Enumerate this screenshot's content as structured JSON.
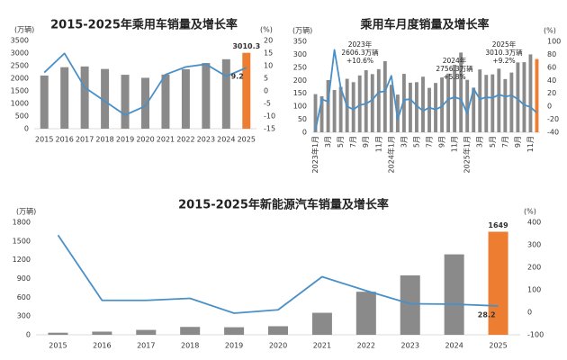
{
  "chart_data": [
    {
      "type": "bar",
      "title": "2015-2025年乘用车销量及增长率",
      "y_label": "(万辆)",
      "y2_label": "(%)",
      "categories": [
        "2015",
        "2016",
        "2017",
        "2018",
        "2019",
        "2020",
        "2021",
        "2022",
        "2023",
        "2024",
        "2025"
      ],
      "series": [
        {
          "name": "销量",
          "type": "bar",
          "color": "#8a8a8a",
          "colors": [
            "#8a8a8a",
            "#8a8a8a",
            "#8a8a8a",
            "#8a8a8a",
            "#8a8a8a",
            "#8a8a8a",
            "#8a8a8a",
            "#8a8a8a",
            "#8a8a8a",
            "#8a8a8a",
            "#ed7d31"
          ],
          "values": [
            2110,
            2440,
            2470,
            2370,
            2140,
            2020,
            2150,
            2360,
            2606.3,
            2756.3,
            3010.3
          ],
          "value_labels": [
            null,
            null,
            null,
            null,
            null,
            null,
            null,
            null,
            null,
            null,
            "3010.3"
          ]
        },
        {
          "name": "增长率",
          "type": "line",
          "axis": "y2",
          "color": "#4a90c8",
          "values": [
            7.3,
            14.9,
            1.4,
            -4.1,
            -9.6,
            -6.0,
            6.5,
            9.5,
            10.6,
            5.8,
            9.2
          ],
          "value_labels": [
            null,
            null,
            null,
            null,
            null,
            null,
            null,
            null,
            null,
            null,
            "9.2"
          ]
        }
      ],
      "ylim": [
        0,
        3500
      ],
      "yticks": [
        0,
        500,
        1000,
        1500,
        2000,
        2500,
        3000,
        3500
      ],
      "y2lim": [
        -15,
        20
      ],
      "y2ticks": [
        -15,
        -10,
        -5,
        0,
        5,
        10,
        15,
        20
      ]
    },
    {
      "type": "bar",
      "title": "乘用车月度销量及增长率",
      "y_label": "(万辆)",
      "y2_label": "(%)",
      "rotate_x_labels": true,
      "categories": [
        "2023年1月",
        null,
        "3月",
        null,
        "5月",
        null,
        "7月",
        null,
        "9月",
        null,
        "11月",
        null,
        "2024年1月",
        null,
        "3月",
        null,
        "5月",
        null,
        "7月",
        null,
        "9月",
        null,
        "11月",
        null,
        "2025年1月",
        null,
        "3月",
        null,
        "5月",
        null,
        "7月",
        null,
        "9月",
        null,
        "11月",
        null
      ],
      "annotations": [
        [
          "2023年",
          "2606.3万辆",
          "+10.6%"
        ],
        [
          "2024年",
          "2756.3万辆",
          "+5.8%"
        ],
        [
          "2025年",
          "3010.3万辆",
          "+9.2%"
        ]
      ],
      "series": [
        {
          "name": "销量",
          "type": "bar",
          "color": "#8a8a8a",
          "colors": [
            "#8a8a8a",
            "#8a8a8a",
            "#8a8a8a",
            "#8a8a8a",
            "#8a8a8a",
            "#8a8a8a",
            "#8a8a8a",
            "#8a8a8a",
            "#8a8a8a",
            "#8a8a8a",
            "#8a8a8a",
            "#8a8a8a",
            "#8a8a8a",
            "#8a8a8a",
            "#8a8a8a",
            "#8a8a8a",
            "#8a8a8a",
            "#8a8a8a",
            "#8a8a8a",
            "#8a8a8a",
            "#8a8a8a",
            "#8a8a8a",
            "#8a8a8a",
            "#8a8a8a",
            "#8a8a8a",
            "#8a8a8a",
            "#8a8a8a",
            "#8a8a8a",
            "#8a8a8a",
            "#8a8a8a",
            "#8a8a8a",
            "#8a8a8a",
            "#8a8a8a",
            "#8a8a8a",
            "#8a8a8a",
            "#ed7d31"
          ],
          "values": [
            147,
            139,
            201,
            163,
            175,
            206,
            193,
            219,
            239,
            224,
            243,
            274,
            183,
            145,
            225,
            191,
            193,
            214,
            171,
            190,
            211,
            226,
            260,
            307,
            202,
            172,
            242,
            221,
            223,
            245,
            205,
            230,
            269,
            270,
            300,
            282
          ]
        },
        {
          "name": "增长率",
          "type": "line",
          "axis": "y2",
          "color": "#4a90c8",
          "values": [
            -37,
            11,
            7,
            87,
            28,
            0,
            -5,
            2,
            4,
            10,
            22,
            23,
            47,
            -20,
            10,
            11,
            1,
            -7,
            -2,
            -5,
            0,
            11,
            14,
            11,
            -11,
            27,
            11,
            14,
            13,
            18,
            15,
            17,
            11,
            2,
            -1,
            -10
          ]
        }
      ],
      "ylim": [
        0,
        350
      ],
      "yticks": [
        0,
        50,
        100,
        150,
        200,
        250,
        300,
        350
      ],
      "y2lim": [
        -40,
        100
      ],
      "y2ticks": [
        -40,
        -20,
        0,
        20,
        40,
        60,
        80,
        100
      ]
    },
    {
      "type": "bar",
      "title": "2015-2025年新能源汽车销量及增长率",
      "y_label": "(万辆)",
      "y2_label": "(%)",
      "categories": [
        "2015",
        "2016",
        "2017",
        "2018",
        "2019",
        "2020",
        "2021",
        "2022",
        "2023",
        "2024",
        "2025"
      ],
      "series": [
        {
          "name": "销量",
          "type": "bar",
          "color": "#8a8a8a",
          "colors": [
            "#8a8a8a",
            "#8a8a8a",
            "#8a8a8a",
            "#8a8a8a",
            "#8a8a8a",
            "#8a8a8a",
            "#8a8a8a",
            "#8a8a8a",
            "#8a8a8a",
            "#8a8a8a",
            "#ed7d31"
          ],
          "values": [
            33,
            51,
            78,
            126,
            121,
            137,
            352,
            689,
            950,
            1287,
            1649
          ],
          "value_labels": [
            null,
            null,
            null,
            null,
            null,
            null,
            null,
            null,
            null,
            null,
            "1649"
          ]
        },
        {
          "name": "增长率",
          "type": "line",
          "axis": "y2",
          "color": "#4a90c8",
          "values": [
            343,
            53,
            53,
            62,
            -4,
            11,
            158,
            96,
            38,
            36,
            28.2
          ],
          "value_labels": [
            null,
            null,
            null,
            null,
            null,
            null,
            null,
            null,
            null,
            null,
            "28.2"
          ]
        }
      ],
      "ylim": [
        0,
        1800
      ],
      "yticks": [
        0,
        300,
        600,
        900,
        1200,
        1500,
        1800
      ],
      "y2lim": [
        -100,
        400
      ],
      "y2ticks": [
        -100,
        0,
        100,
        200,
        300,
        400
      ]
    }
  ]
}
